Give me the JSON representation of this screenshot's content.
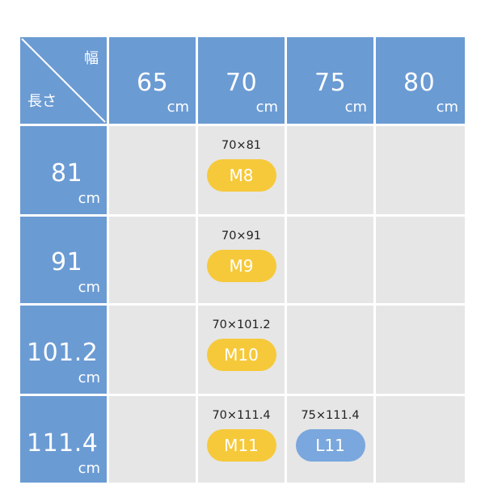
{
  "corner": {
    "width_label": "幅",
    "length_label": "長さ"
  },
  "unit": "cm",
  "columns": [
    {
      "value": "65"
    },
    {
      "value": "70"
    },
    {
      "value": "75"
    },
    {
      "value": "80"
    }
  ],
  "rows": [
    {
      "value": "81"
    },
    {
      "value": "91"
    },
    {
      "value": "101.2"
    },
    {
      "value": "111.4"
    }
  ],
  "entries": {
    "r0c1": {
      "dims": "70×81",
      "code": "M8"
    },
    "r1c1": {
      "dims": "70×91",
      "code": "M9"
    },
    "r2c1": {
      "dims": "70×101.2",
      "code": "M10"
    },
    "r3c1": {
      "dims": "70×111.4",
      "code": "M11"
    },
    "r3c2": {
      "dims": "75×111.4",
      "code": "L11"
    }
  },
  "colors": {
    "header_bg": "#6b9bd3",
    "cell_bg": "#e6e6e6",
    "pill_m": "#f6c93a",
    "pill_l": "#7aa7dd"
  }
}
